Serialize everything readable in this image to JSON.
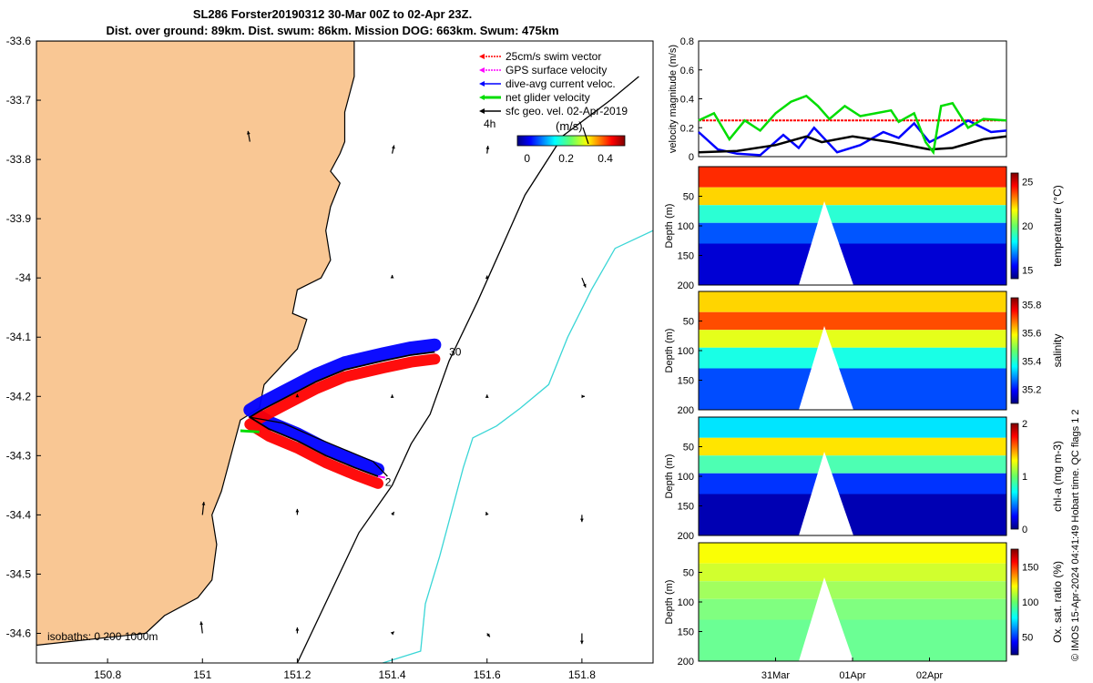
{
  "header": {
    "title_line1": "SL286 Forster20190312 30-Mar 00Z to 02-Apr 23Z.",
    "title_line2": "Dist. over ground: 89km. Dist. swum: 86km. Mission DOG: 663km. Swum: 475km"
  },
  "footer": {
    "credit": "© IMOS 15-Apr-2024 04:41:49 Hobart time. QC flags 1  2"
  },
  "colors": {
    "land": "#f9c794",
    "coast": "#000000",
    "isobath_200": "#000000",
    "isobath_1000": "#3ad6d6",
    "swim": "#ff0000",
    "gps": "#ff00ff",
    "current": "#0000ff",
    "net": "#00dd00",
    "geo": "#000000"
  },
  "chart_data": [
    {
      "type": "map",
      "xlim": [
        150.65,
        151.95
      ],
      "ylim": [
        -34.65,
        -33.6
      ],
      "x_ticks": [
        "150.8",
        "151",
        "151.2",
        "151.4",
        "151.6",
        "151.8"
      ],
      "x_tick_values": [
        150.8,
        151.0,
        151.2,
        151.4,
        151.6,
        151.8
      ],
      "y_ticks": [
        "-33.6",
        "-33.7",
        "-33.8",
        "-33.9",
        "-34",
        "-34.1",
        "-34.2",
        "-34.3",
        "-34.4",
        "-34.5",
        "-34.6"
      ],
      "y_tick_values": [
        -33.6,
        -33.7,
        -33.8,
        -33.9,
        -34.0,
        -34.1,
        -34.2,
        -34.3,
        -34.4,
        -34.5,
        -34.6
      ],
      "legend": [
        "25cm/s swim vector",
        "GPS surface velocity",
        "dive-avg current veloc.",
        "net glider velocity",
        "sfc geo. vel. 02-Apr-2019"
      ],
      "legend_extra": "4h",
      "colorbar": {
        "label": "(m/s)",
        "ticks": [
          "0",
          "0.2",
          "0.4"
        ],
        "tick_values": [
          0,
          0.2,
          0.4
        ],
        "range": [
          -0.05,
          0.5
        ]
      },
      "isobath_label": "isobaths: 0   200  1000m",
      "track_labels": [
        {
          "text": "30",
          "lon": 151.52,
          "lat": -34.125
        },
        {
          "text": "2",
          "lon": 151.385,
          "lat": -34.345
        }
      ],
      "track": [
        [
          151.49,
          -34.125
        ],
        [
          151.44,
          -34.13
        ],
        [
          151.38,
          -34.14
        ],
        [
          151.3,
          -34.155
        ],
        [
          151.24,
          -34.175
        ],
        [
          151.18,
          -34.2
        ],
        [
          151.12,
          -34.225
        ],
        [
          151.1,
          -34.235
        ],
        [
          151.14,
          -34.255
        ],
        [
          151.2,
          -34.275
        ],
        [
          151.26,
          -34.3
        ],
        [
          151.32,
          -34.32
        ],
        [
          151.37,
          -34.335
        ]
      ],
      "track2": [
        [
          151.1,
          -34.235
        ],
        [
          151.17,
          -34.245
        ],
        [
          151.24,
          -34.27
        ],
        [
          151.3,
          -34.29
        ],
        [
          151.36,
          -34.31
        ],
        [
          151.39,
          -34.335
        ]
      ],
      "coastline": [
        [
          150.65,
          -34.62
        ],
        [
          150.88,
          -34.6
        ],
        [
          150.92,
          -34.57
        ],
        [
          150.99,
          -34.54
        ],
        [
          151.02,
          -34.51
        ],
        [
          151.03,
          -34.45
        ],
        [
          151.02,
          -34.4
        ],
        [
          151.04,
          -34.36
        ],
        [
          151.06,
          -34.3
        ],
        [
          151.08,
          -34.24
        ],
        [
          151.12,
          -34.22
        ],
        [
          151.13,
          -34.18
        ],
        [
          151.2,
          -34.12
        ],
        [
          151.22,
          -34.07
        ],
        [
          151.19,
          -34.06
        ],
        [
          151.2,
          -34.02
        ],
        [
          151.25,
          -34.0
        ],
        [
          151.27,
          -33.97
        ],
        [
          151.26,
          -33.92
        ],
        [
          151.27,
          -33.88
        ],
        [
          151.29,
          -33.84
        ],
        [
          151.27,
          -33.82
        ],
        [
          151.29,
          -33.79
        ],
        [
          151.3,
          -33.77
        ],
        [
          151.3,
          -33.72
        ],
        [
          151.32,
          -33.66
        ],
        [
          151.32,
          -33.6
        ],
        [
          150.65,
          -33.6
        ]
      ],
      "isobath_200": [
        [
          151.2,
          -34.65
        ],
        [
          151.33,
          -34.43
        ],
        [
          151.4,
          -34.35
        ],
        [
          151.44,
          -34.28
        ],
        [
          151.48,
          -34.23
        ],
        [
          151.52,
          -34.14
        ],
        [
          151.58,
          -34.04
        ],
        [
          151.63,
          -33.95
        ],
        [
          151.68,
          -33.86
        ],
        [
          151.76,
          -33.76
        ],
        [
          151.86,
          -33.7
        ],
        [
          151.92,
          -33.66
        ]
      ],
      "isobath_1000": [
        [
          151.38,
          -34.65
        ],
        [
          151.46,
          -34.63
        ],
        [
          151.47,
          -34.55
        ],
        [
          151.5,
          -34.47
        ],
        [
          151.53,
          -34.38
        ],
        [
          151.55,
          -34.32
        ],
        [
          151.57,
          -34.27
        ],
        [
          151.62,
          -34.25
        ],
        [
          151.67,
          -34.22
        ],
        [
          151.73,
          -34.18
        ],
        [
          151.77,
          -34.1
        ],
        [
          151.82,
          -34.02
        ],
        [
          151.87,
          -33.95
        ],
        [
          151.95,
          -33.92
        ]
      ],
      "geo_vectors": [
        [
          151.1,
          -33.77,
          -0.004,
          0.018
        ],
        [
          151.4,
          -33.79,
          0.004,
          0.014
        ],
        [
          151.6,
          -33.79,
          0.002,
          0.013
        ],
        [
          151.4,
          -34.0,
          0.0,
          0.005
        ],
        [
          151.6,
          -34.0,
          0.0,
          0.004
        ],
        [
          151.8,
          -34.0,
          0.008,
          -0.016
        ],
        [
          151.2,
          -34.2,
          0.0,
          0.004
        ],
        [
          151.4,
          -34.2,
          0.0,
          0.003
        ],
        [
          151.6,
          -34.2,
          0.0,
          0.003
        ],
        [
          151.8,
          -34.2,
          0.006,
          0.0
        ],
        [
          151.0,
          -34.4,
          0.003,
          0.022
        ],
        [
          151.2,
          -34.4,
          0.0,
          0.01
        ],
        [
          151.4,
          -34.4,
          0.004,
          0.005
        ],
        [
          151.6,
          -34.4,
          -0.002,
          0.005
        ],
        [
          151.8,
          -34.4,
          0.0,
          -0.012
        ],
        [
          151.0,
          -34.6,
          -0.003,
          0.02
        ],
        [
          151.2,
          -34.6,
          0.0,
          0.01
        ],
        [
          151.4,
          -34.6,
          0.004,
          0.003
        ],
        [
          151.6,
          -34.6,
          0.006,
          -0.006
        ],
        [
          151.8,
          -34.6,
          0.0,
          -0.018
        ]
      ]
    },
    {
      "type": "line",
      "ylabel": "velocity magnitude (m/s)",
      "xlim": [
        0,
        4
      ],
      "ylim": [
        0,
        0.8
      ],
      "y_ticks": [
        "0",
        "0.2",
        "0.4",
        "0.6",
        "0.8"
      ],
      "series": [
        {
          "color": "#ff0000",
          "values": [
            [
              0,
              0.25
            ],
            [
              0.5,
              0.25
            ],
            [
              1,
              0.25
            ],
            [
              1.5,
              0.25
            ],
            [
              2,
              0.25
            ],
            [
              2.5,
              0.25
            ],
            [
              3,
              0.25
            ],
            [
              3.5,
              0.25
            ],
            [
              4,
              0.25
            ]
          ]
        },
        {
          "color": "#0000ff",
          "values": [
            [
              0,
              0.17
            ],
            [
              0.25,
              0.05
            ],
            [
              0.5,
              0.02
            ],
            [
              0.8,
              0.01
            ],
            [
              1.1,
              0.15
            ],
            [
              1.3,
              0.06
            ],
            [
              1.5,
              0.2
            ],
            [
              1.8,
              0.03
            ],
            [
              2.1,
              0.08
            ],
            [
              2.4,
              0.17
            ],
            [
              2.6,
              0.13
            ],
            [
              2.8,
              0.23
            ],
            [
              3.0,
              0.1
            ],
            [
              3.3,
              0.18
            ],
            [
              3.5,
              0.25
            ],
            [
              3.8,
              0.17
            ],
            [
              4,
              0.18
            ]
          ]
        },
        {
          "color": "#000000",
          "values": [
            [
              0,
              0.03
            ],
            [
              0.5,
              0.04
            ],
            [
              1.0,
              0.08
            ],
            [
              1.4,
              0.14
            ],
            [
              1.6,
              0.1
            ],
            [
              2.0,
              0.14
            ],
            [
              2.5,
              0.1
            ],
            [
              3.0,
              0.05
            ],
            [
              3.3,
              0.06
            ],
            [
              3.7,
              0.12
            ],
            [
              4,
              0.14
            ]
          ]
        },
        {
          "color": "#00dd00",
          "values": [
            [
              0,
              0.25
            ],
            [
              0.2,
              0.3
            ],
            [
              0.4,
              0.12
            ],
            [
              0.6,
              0.25
            ],
            [
              0.8,
              0.18
            ],
            [
              1.0,
              0.3
            ],
            [
              1.2,
              0.38
            ],
            [
              1.4,
              0.42
            ],
            [
              1.55,
              0.35
            ],
            [
              1.7,
              0.26
            ],
            [
              1.9,
              0.35
            ],
            [
              2.1,
              0.28
            ],
            [
              2.3,
              0.3
            ],
            [
              2.5,
              0.32
            ],
            [
              2.6,
              0.24
            ],
            [
              2.8,
              0.3
            ],
            [
              2.95,
              0.1
            ],
            [
              3.05,
              0.03
            ],
            [
              3.15,
              0.35
            ],
            [
              3.3,
              0.37
            ],
            [
              3.5,
              0.2
            ],
            [
              3.7,
              0.26
            ],
            [
              4,
              0.25
            ]
          ]
        }
      ]
    },
    {
      "type": "heatmap",
      "ylabel": "Depth (m)",
      "cblabel": "temperature (°C)",
      "y_ticks": [
        "50",
        "100",
        "150",
        "200"
      ],
      "cbar_ticks": [
        "15",
        "20",
        "25"
      ],
      "cbar_values": [
        15,
        20,
        25
      ],
      "cbar_range": [
        14,
        26
      ],
      "layers": [
        {
          "depth": 20,
          "value": 24
        },
        {
          "depth": 50,
          "value": 22
        },
        {
          "depth": 80,
          "value": 19
        },
        {
          "depth": 110,
          "value": 16.5
        },
        {
          "depth": 150,
          "value": 15
        }
      ]
    },
    {
      "type": "heatmap",
      "ylabel": "Depth (m)",
      "cblabel": "salinity",
      "y_ticks": [
        "50",
        "100",
        "150",
        "200"
      ],
      "cbar_ticks": [
        "35.2",
        "35.4",
        "35.6",
        "35.8"
      ],
      "cbar_values": [
        35.2,
        35.4,
        35.6,
        35.8
      ],
      "cbar_range": [
        35.1,
        35.85
      ],
      "layers": [
        {
          "depth": 20,
          "value": 35.6
        },
        {
          "depth": 50,
          "value": 35.7
        },
        {
          "depth": 80,
          "value": 35.55
        },
        {
          "depth": 110,
          "value": 35.4
        },
        {
          "depth": 150,
          "value": 35.25
        }
      ]
    },
    {
      "type": "heatmap",
      "ylabel": "Depth (m)",
      "cblabel": "chl-a (mg m-3)",
      "y_ticks": [
        "50",
        "100",
        "150",
        "200"
      ],
      "cbar_ticks": [
        "0",
        "1",
        "2"
      ],
      "cbar_values": [
        0,
        1,
        2
      ],
      "cbar_range": [
        0,
        2
      ],
      "layers": [
        {
          "depth": 20,
          "value": 0.7
        },
        {
          "depth": 50,
          "value": 1.3
        },
        {
          "depth": 80,
          "value": 0.9
        },
        {
          "depth": 110,
          "value": 0.35
        },
        {
          "depth": 150,
          "value": 0.1
        }
      ]
    },
    {
      "type": "heatmap",
      "ylabel": "Depth (m)",
      "cblabel": "Ox. sat. ratio (%)",
      "y_ticks": [
        "50",
        "100",
        "150",
        "200"
      ],
      "x_ticks": [
        "31Mar",
        "01Apr",
        "02Apr"
      ],
      "x_tick_values": [
        1,
        2,
        3
      ],
      "cbar_ticks": [
        "50",
        "100",
        "150"
      ],
      "cbar_values": [
        50,
        100,
        150
      ],
      "cbar_range": [
        25,
        175
      ],
      "layers": [
        {
          "depth": 20,
          "value": 118
        },
        {
          "depth": 50,
          "value": 112
        },
        {
          "depth": 80,
          "value": 105
        },
        {
          "depth": 110,
          "value": 100
        },
        {
          "depth": 150,
          "value": 97
        }
      ]
    }
  ]
}
